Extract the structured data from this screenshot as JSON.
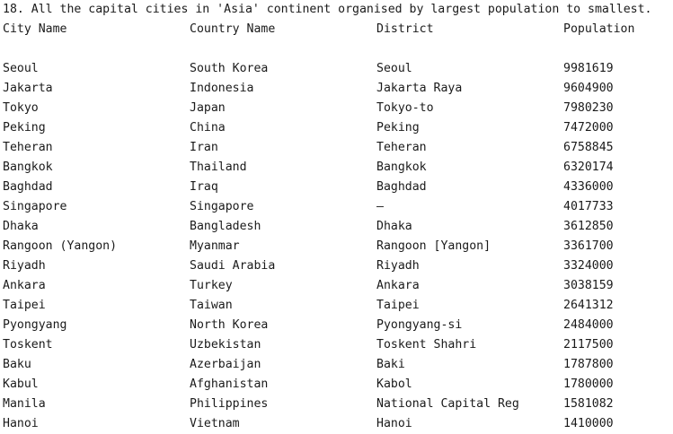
{
  "title": "18. All the capital cities in 'Asia' continent organised by largest population to smallest.",
  "headers": [
    "City Name",
    "Country Name",
    "District",
    "Population"
  ],
  "rows": [
    [
      "Seoul",
      "South Korea",
      "Seoul",
      "9981619"
    ],
    [
      "Jakarta",
      "Indonesia",
      "Jakarta Raya",
      "9604900"
    ],
    [
      "Tokyo",
      "Japan",
      "Tokyo-to",
      "7980230"
    ],
    [
      "Peking",
      "China",
      "Peking",
      "7472000"
    ],
    [
      "Teheran",
      "Iran",
      "Teheran",
      "6758845"
    ],
    [
      "Bangkok",
      "Thailand",
      "Bangkok",
      "6320174"
    ],
    [
      "Baghdad",
      "Iraq",
      "Baghdad",
      "4336000"
    ],
    [
      "Singapore",
      "Singapore",
      "–",
      "4017733"
    ],
    [
      "Dhaka",
      "Bangladesh",
      "Dhaka",
      "3612850"
    ],
    [
      "Rangoon (Yangon)",
      "Myanmar",
      "Rangoon [Yangon]",
      "3361700"
    ],
    [
      "Riyadh",
      "Saudi Arabia",
      "Riyadh",
      "3324000"
    ],
    [
      "Ankara",
      "Turkey",
      "Ankara",
      "3038159"
    ],
    [
      "Taipei",
      "Taiwan",
      "Taipei",
      "2641312"
    ],
    [
      "Pyongyang",
      "North Korea",
      "Pyongyang-si",
      "2484000"
    ],
    [
      "Toskent",
      "Uzbekistan",
      "Toskent Shahri",
      "2117500"
    ],
    [
      "Baku",
      "Azerbaijan",
      "Baki",
      "1787800"
    ],
    [
      "Kabul",
      "Afghanistan",
      "Kabol",
      "1780000"
    ],
    [
      "Manila",
      "Philippines",
      "National Capital Reg",
      "1581082"
    ],
    [
      "Hanoi",
      "Vietnam",
      "Hanoi",
      "1410000"
    ]
  ]
}
